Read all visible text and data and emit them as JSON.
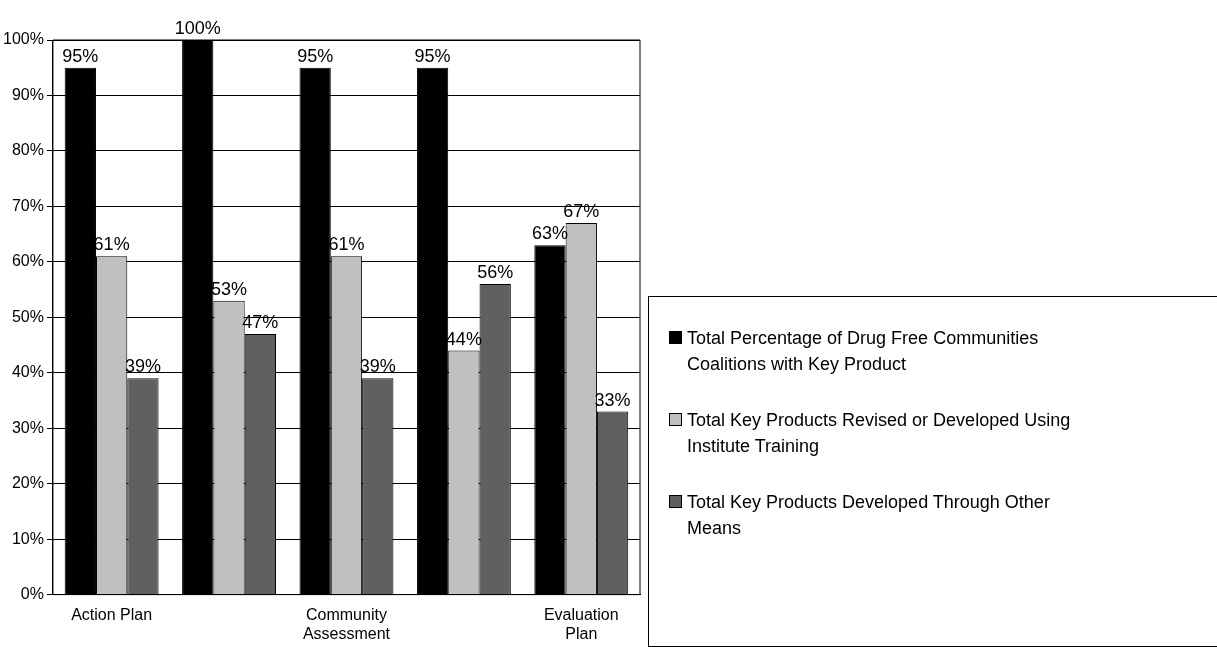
{
  "chart_data": {
    "type": "bar",
    "categories": [
      "Action Plan",
      null,
      "Community Assessment",
      null,
      "Evaluation Plan"
    ],
    "series": [
      {
        "name": "Total Percentage of Drug Free Communities Coalitions with Key Product",
        "color": "#000000",
        "values": [
          95,
          100,
          95,
          95,
          63
        ],
        "value_labels": [
          "95%",
          "100%",
          "95%",
          "95%",
          "63%"
        ]
      },
      {
        "name": "Total Key Products Revised or Developed Using Institute Training",
        "color": "#c0c0c0",
        "values": [
          61,
          53,
          61,
          44,
          67
        ],
        "value_labels": [
          "61%",
          "53%",
          "61%",
          "44%",
          "67%"
        ]
      },
      {
        "name": "Total Key Products Developed Through Other Means",
        "color": "#606060",
        "values": [
          39,
          47,
          39,
          56,
          33
        ],
        "value_labels": [
          "39%",
          "47%",
          "39%",
          "56%",
          "33%"
        ]
      }
    ],
    "ylim": [
      0,
      100
    ],
    "yticks": [
      {
        "value": 0,
        "label": "0%"
      },
      {
        "value": 10,
        "label": "10%"
      },
      {
        "value": 20,
        "label": "20%"
      },
      {
        "value": 30,
        "label": "30%"
      },
      {
        "value": 40,
        "label": "40%"
      },
      {
        "value": 50,
        "label": "50%"
      },
      {
        "value": 60,
        "label": "60%"
      },
      {
        "value": 70,
        "label": "70%"
      },
      {
        "value": 80,
        "label": "80%"
      },
      {
        "value": 90,
        "label": "90%"
      },
      {
        "value": 100,
        "label": "100%"
      }
    ],
    "grid": "y",
    "legend": "right"
  }
}
